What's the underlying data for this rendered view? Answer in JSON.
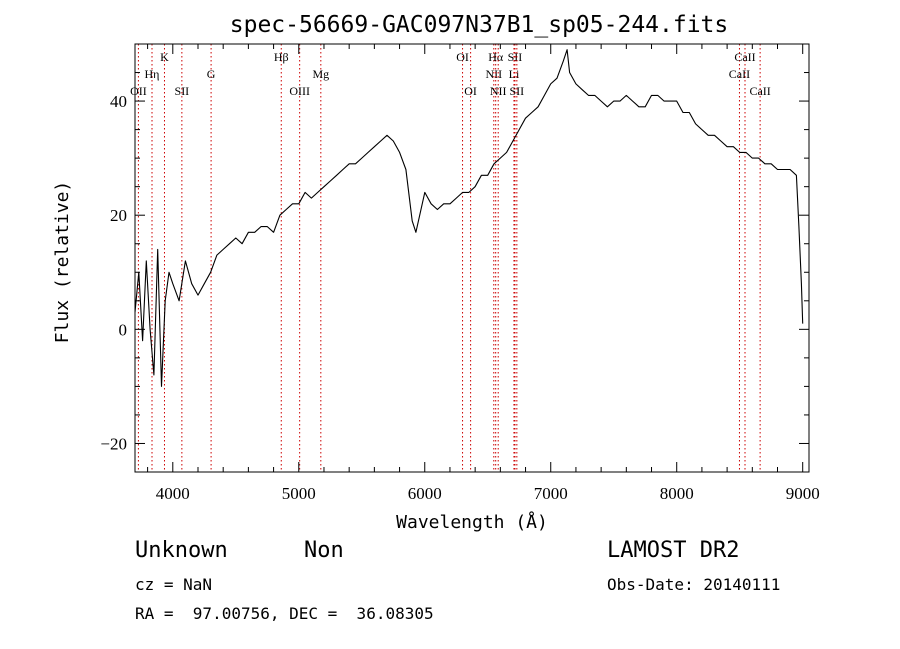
{
  "chart_data": {
    "type": "line",
    "title": "spec-56669-GAC097N37B1_sp05-244.fits",
    "xlabel": "Wavelength (Å)",
    "ylabel": "Flux (relative)",
    "xlim": [
      3700,
      9050
    ],
    "ylim": [
      -25,
      50
    ],
    "xticks": [
      4000,
      5000,
      6000,
      7000,
      8000,
      9000
    ],
    "yticks": [
      -20,
      0,
      20,
      40
    ],
    "grid": false,
    "line_color": "#000000",
    "marker_color": "#cc0000",
    "series": [
      {
        "x": [
          3700,
          3730,
          3760,
          3790,
          3820,
          3850,
          3880,
          3910,
          3940,
          3970,
          4000,
          4050,
          4100,
          4150,
          4200,
          4250,
          4300,
          4350,
          4400,
          4450,
          4500,
          4550,
          4600,
          4650,
          4700,
          4750,
          4800,
          4850,
          4900,
          4950,
          5000,
          5050,
          5100,
          5150,
          5200,
          5250,
          5300,
          5350,
          5400,
          5450,
          5500,
          5550,
          5600,
          5650,
          5700,
          5750,
          5800,
          5850,
          5900,
          5930,
          5960,
          6000,
          6050,
          6100,
          6150,
          6200,
          6250,
          6300,
          6350,
          6400,
          6450,
          6500,
          6550,
          6600,
          6650,
          6700,
          6750,
          6800,
          6850,
          6900,
          6950,
          7000,
          7050,
          7100,
          7130,
          7150,
          7200,
          7250,
          7300,
          7350,
          7400,
          7450,
          7500,
          7550,
          7600,
          7650,
          7700,
          7750,
          7800,
          7850,
          7900,
          7950,
          8000,
          8050,
          8100,
          8150,
          8200,
          8250,
          8300,
          8350,
          8400,
          8450,
          8500,
          8550,
          8600,
          8650,
          8700,
          8750,
          8800,
          8850,
          8900,
          8950,
          8970,
          8990,
          9000
        ],
        "y": [
          3,
          10,
          -2,
          12,
          0,
          -8,
          14,
          -10,
          5,
          10,
          8,
          5,
          12,
          8,
          6,
          8,
          10,
          13,
          14,
          15,
          16,
          15,
          17,
          17,
          18,
          18,
          17,
          20,
          21,
          22,
          22,
          24,
          23,
          24,
          25,
          26,
          27,
          28,
          29,
          29,
          30,
          31,
          32,
          33,
          34,
          33,
          31,
          28,
          19,
          17,
          20,
          24,
          22,
          21,
          22,
          22,
          23,
          24,
          24,
          25,
          27,
          27,
          29,
          30,
          31,
          33,
          35,
          37,
          38,
          39,
          41,
          43,
          44,
          47,
          49,
          45,
          43,
          42,
          41,
          41,
          40,
          39,
          40,
          40,
          41,
          40,
          39,
          39,
          41,
          41,
          40,
          40,
          40,
          38,
          38,
          36,
          35,
          34,
          34,
          33,
          32,
          32,
          31,
          31,
          30,
          30,
          29,
          29,
          28,
          28,
          28,
          27,
          18,
          8,
          1
        ]
      }
    ],
    "line_ids": [
      {
        "label": "OII",
        "wl": 3727,
        "tier": 3
      },
      {
        "label": "Hη",
        "wl": 3835,
        "tier": 2
      },
      {
        "label": "K",
        "wl": 3934,
        "tier": 1
      },
      {
        "label": "SII",
        "wl": 4072,
        "tier": 3
      },
      {
        "label": "G",
        "wl": 4304,
        "tier": 2
      },
      {
        "label": "Hβ",
        "wl": 4861,
        "tier": 1
      },
      {
        "label": "OIII",
        "wl": 5007,
        "tier": 3
      },
      {
        "label": "Mg",
        "wl": 5175,
        "tier": 2
      },
      {
        "label": "OI",
        "wl": 6300,
        "tier": 1
      },
      {
        "label": "OI",
        "wl": 6364,
        "tier": 3
      },
      {
        "label": "NII",
        "wl": 6548,
        "tier": 2
      },
      {
        "label": "Hα",
        "wl": 6563,
        "tier": 1
      },
      {
        "label": "NII",
        "wl": 6583,
        "tier": 3
      },
      {
        "label": "Li",
        "wl": 6708,
        "tier": 2
      },
      {
        "label": "SII",
        "wl": 6716,
        "tier": 1
      },
      {
        "label": "SII",
        "wl": 6731,
        "tier": 3
      },
      {
        "label": "CaII",
        "wl": 8498,
        "tier": 2
      },
      {
        "label": "CaII",
        "wl": 8542,
        "tier": 1
      },
      {
        "label": "CaII",
        "wl": 8662,
        "tier": 3
      }
    ],
    "annotations": {
      "class": "Unknown",
      "subclass": "Non",
      "survey": "LAMOST DR2",
      "redshift": "cz = NaN",
      "obs_date": "Obs-Date: 20140111",
      "coords": "RA =  97.00756, DEC =  36.08305"
    }
  }
}
